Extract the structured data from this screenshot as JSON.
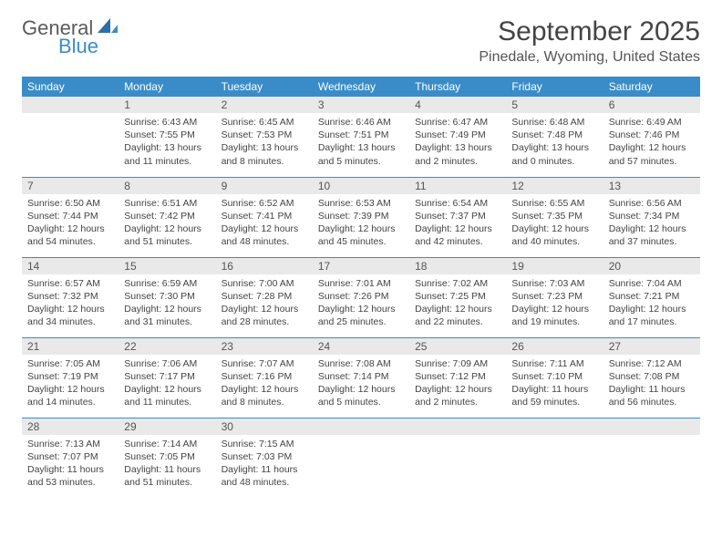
{
  "logo": {
    "general": "General",
    "blue": "Blue"
  },
  "title": "September 2025",
  "location": "Pinedale, Wyoming, United States",
  "colors": {
    "header_bg": "#3a8cc9",
    "header_text": "#ffffff",
    "daynum_bg": "#e9e9e9",
    "border": "#3a8cc9",
    "body_text": "#444444"
  },
  "day_labels": [
    "Sunday",
    "Monday",
    "Tuesday",
    "Wednesday",
    "Thursday",
    "Friday",
    "Saturday"
  ],
  "weeks": [
    [
      null,
      {
        "n": "1",
        "sr": "Sunrise: 6:43 AM",
        "ss": "Sunset: 7:55 PM",
        "dl": "Daylight: 13 hours and 11 minutes."
      },
      {
        "n": "2",
        "sr": "Sunrise: 6:45 AM",
        "ss": "Sunset: 7:53 PM",
        "dl": "Daylight: 13 hours and 8 minutes."
      },
      {
        "n": "3",
        "sr": "Sunrise: 6:46 AM",
        "ss": "Sunset: 7:51 PM",
        "dl": "Daylight: 13 hours and 5 minutes."
      },
      {
        "n": "4",
        "sr": "Sunrise: 6:47 AM",
        "ss": "Sunset: 7:49 PM",
        "dl": "Daylight: 13 hours and 2 minutes."
      },
      {
        "n": "5",
        "sr": "Sunrise: 6:48 AM",
        "ss": "Sunset: 7:48 PM",
        "dl": "Daylight: 13 hours and 0 minutes."
      },
      {
        "n": "6",
        "sr": "Sunrise: 6:49 AM",
        "ss": "Sunset: 7:46 PM",
        "dl": "Daylight: 12 hours and 57 minutes."
      }
    ],
    [
      {
        "n": "7",
        "sr": "Sunrise: 6:50 AM",
        "ss": "Sunset: 7:44 PM",
        "dl": "Daylight: 12 hours and 54 minutes."
      },
      {
        "n": "8",
        "sr": "Sunrise: 6:51 AM",
        "ss": "Sunset: 7:42 PM",
        "dl": "Daylight: 12 hours and 51 minutes."
      },
      {
        "n": "9",
        "sr": "Sunrise: 6:52 AM",
        "ss": "Sunset: 7:41 PM",
        "dl": "Daylight: 12 hours and 48 minutes."
      },
      {
        "n": "10",
        "sr": "Sunrise: 6:53 AM",
        "ss": "Sunset: 7:39 PM",
        "dl": "Daylight: 12 hours and 45 minutes."
      },
      {
        "n": "11",
        "sr": "Sunrise: 6:54 AM",
        "ss": "Sunset: 7:37 PM",
        "dl": "Daylight: 12 hours and 42 minutes."
      },
      {
        "n": "12",
        "sr": "Sunrise: 6:55 AM",
        "ss": "Sunset: 7:35 PM",
        "dl": "Daylight: 12 hours and 40 minutes."
      },
      {
        "n": "13",
        "sr": "Sunrise: 6:56 AM",
        "ss": "Sunset: 7:34 PM",
        "dl": "Daylight: 12 hours and 37 minutes."
      }
    ],
    [
      {
        "n": "14",
        "sr": "Sunrise: 6:57 AM",
        "ss": "Sunset: 7:32 PM",
        "dl": "Daylight: 12 hours and 34 minutes."
      },
      {
        "n": "15",
        "sr": "Sunrise: 6:59 AM",
        "ss": "Sunset: 7:30 PM",
        "dl": "Daylight: 12 hours and 31 minutes."
      },
      {
        "n": "16",
        "sr": "Sunrise: 7:00 AM",
        "ss": "Sunset: 7:28 PM",
        "dl": "Daylight: 12 hours and 28 minutes."
      },
      {
        "n": "17",
        "sr": "Sunrise: 7:01 AM",
        "ss": "Sunset: 7:26 PM",
        "dl": "Daylight: 12 hours and 25 minutes."
      },
      {
        "n": "18",
        "sr": "Sunrise: 7:02 AM",
        "ss": "Sunset: 7:25 PM",
        "dl": "Daylight: 12 hours and 22 minutes."
      },
      {
        "n": "19",
        "sr": "Sunrise: 7:03 AM",
        "ss": "Sunset: 7:23 PM",
        "dl": "Daylight: 12 hours and 19 minutes."
      },
      {
        "n": "20",
        "sr": "Sunrise: 7:04 AM",
        "ss": "Sunset: 7:21 PM",
        "dl": "Daylight: 12 hours and 17 minutes."
      }
    ],
    [
      {
        "n": "21",
        "sr": "Sunrise: 7:05 AM",
        "ss": "Sunset: 7:19 PM",
        "dl": "Daylight: 12 hours and 14 minutes."
      },
      {
        "n": "22",
        "sr": "Sunrise: 7:06 AM",
        "ss": "Sunset: 7:17 PM",
        "dl": "Daylight: 12 hours and 11 minutes."
      },
      {
        "n": "23",
        "sr": "Sunrise: 7:07 AM",
        "ss": "Sunset: 7:16 PM",
        "dl": "Daylight: 12 hours and 8 minutes."
      },
      {
        "n": "24",
        "sr": "Sunrise: 7:08 AM",
        "ss": "Sunset: 7:14 PM",
        "dl": "Daylight: 12 hours and 5 minutes."
      },
      {
        "n": "25",
        "sr": "Sunrise: 7:09 AM",
        "ss": "Sunset: 7:12 PM",
        "dl": "Daylight: 12 hours and 2 minutes."
      },
      {
        "n": "26",
        "sr": "Sunrise: 7:11 AM",
        "ss": "Sunset: 7:10 PM",
        "dl": "Daylight: 11 hours and 59 minutes."
      },
      {
        "n": "27",
        "sr": "Sunrise: 7:12 AM",
        "ss": "Sunset: 7:08 PM",
        "dl": "Daylight: 11 hours and 56 minutes."
      }
    ],
    [
      {
        "n": "28",
        "sr": "Sunrise: 7:13 AM",
        "ss": "Sunset: 7:07 PM",
        "dl": "Daylight: 11 hours and 53 minutes."
      },
      {
        "n": "29",
        "sr": "Sunrise: 7:14 AM",
        "ss": "Sunset: 7:05 PM",
        "dl": "Daylight: 11 hours and 51 minutes."
      },
      {
        "n": "30",
        "sr": "Sunrise: 7:15 AM",
        "ss": "Sunset: 7:03 PM",
        "dl": "Daylight: 11 hours and 48 minutes."
      },
      null,
      null,
      null,
      null
    ]
  ]
}
